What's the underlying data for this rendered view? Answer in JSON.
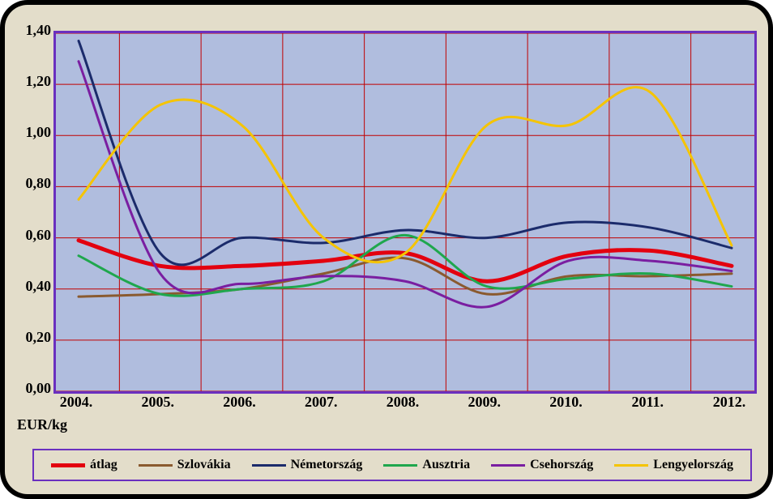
{
  "chart": {
    "type": "line",
    "background_outer": "#000000",
    "background_panel": "#e3ddca",
    "plot_background": "#b0bdde",
    "plot_border_color": "#6a2fbf",
    "plot_border_width": 3,
    "grid_color": "#c10000",
    "axis_title": "EUR/kg",
    "axis_title_fontsize": 18,
    "label_fontsize": 18,
    "label_color": "#000000",
    "label_fontweight": "bold",
    "x_categories": [
      "2004.",
      "2005.",
      "2006.",
      "2007.",
      "2008.",
      "2009.",
      "2010.",
      "2011.",
      "2012."
    ],
    "ylim": [
      0.0,
      1.4
    ],
    "ytick_step": 0.2,
    "ytick_labels": [
      "0,00",
      "0,20",
      "0,40",
      "0,60",
      "0,80",
      "1,00",
      "1,20",
      "1,40"
    ],
    "legend_border_color": "#6a2fbf",
    "series": [
      {
        "name": "átlag",
        "color": "#e3000f",
        "width": 5,
        "values": [
          0.59,
          0.49,
          0.49,
          0.51,
          0.54,
          0.43,
          0.53,
          0.55,
          0.49
        ]
      },
      {
        "name": "Szlovákia",
        "color": "#8a5a2f",
        "width": 3,
        "values": [
          0.37,
          0.38,
          0.4,
          0.46,
          0.52,
          0.38,
          0.45,
          0.45,
          0.46
        ]
      },
      {
        "name": "Németország",
        "color": "#1b2b6b",
        "width": 3,
        "values": [
          1.37,
          0.54,
          0.6,
          0.58,
          0.63,
          0.6,
          0.66,
          0.64,
          0.56
        ]
      },
      {
        "name": "Ausztria",
        "color": "#1fa74d",
        "width": 3,
        "values": [
          0.53,
          0.38,
          0.4,
          0.43,
          0.61,
          0.41,
          0.44,
          0.46,
          0.41
        ]
      },
      {
        "name": "Csehország",
        "color": "#7a1ea1",
        "width": 3,
        "values": [
          1.29,
          0.46,
          0.42,
          0.45,
          0.43,
          0.33,
          0.51,
          0.51,
          0.47
        ]
      },
      {
        "name": "Lengyelország",
        "color": "#f5c400",
        "width": 3,
        "values": [
          0.75,
          1.12,
          1.04,
          0.6,
          0.54,
          1.04,
          1.04,
          1.17,
          0.57
        ]
      }
    ]
  }
}
